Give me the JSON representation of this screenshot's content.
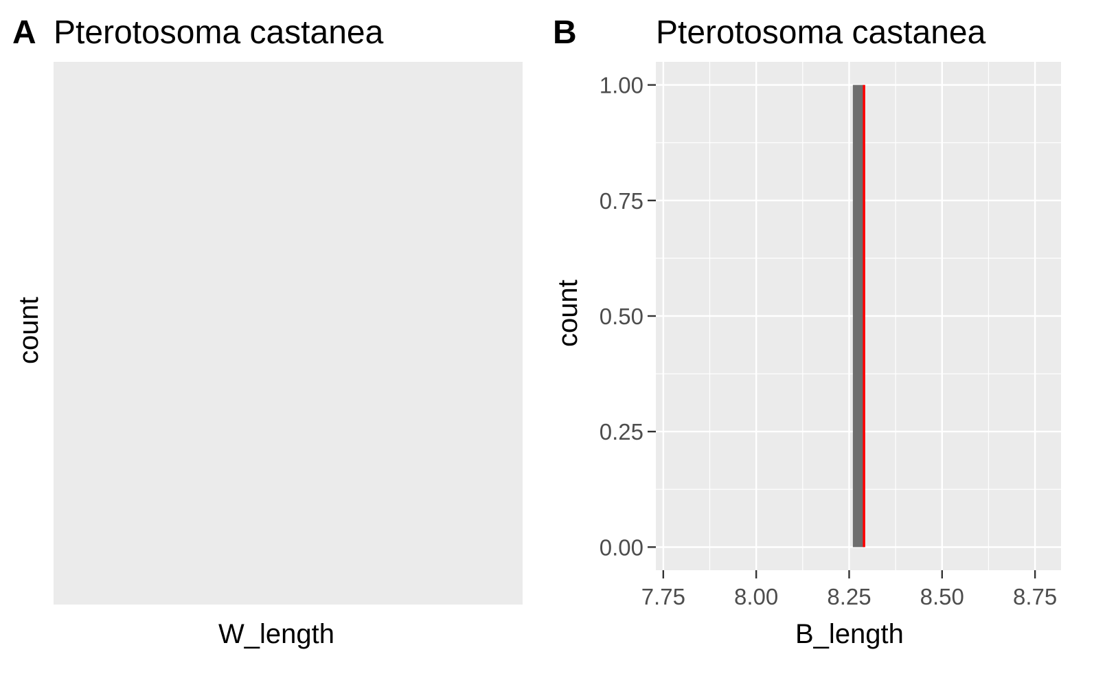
{
  "chart_data": [
    {
      "panel": "A",
      "type": "bar",
      "title": "Pterotosoma castanea",
      "xlabel": "W_length",
      "ylabel": "count",
      "values": [],
      "grid": false
    },
    {
      "panel": "B",
      "type": "bar",
      "title": "Pterotosoma castanea",
      "xlabel": "B_length",
      "ylabel": "count",
      "xlim": [
        7.73,
        8.82
      ],
      "ylim": [
        -0.05,
        1.05
      ],
      "xticks": [
        7.75,
        8.0,
        8.25,
        8.5,
        8.75
      ],
      "xtick_labels": [
        "7.75",
        "8.00",
        "8.25",
        "8.50",
        "8.75"
      ],
      "yticks": [
        0.0,
        0.25,
        0.5,
        0.75,
        1.0
      ],
      "ytick_labels": [
        "0.00",
        "0.25",
        "0.50",
        "0.75",
        "1.00"
      ],
      "bars": [
        {
          "xmin": 8.26,
          "xmax": 8.29,
          "count": 1
        }
      ],
      "vline": {
        "x": 8.29,
        "color": "#ff0000"
      },
      "bar_color": "#6e6e6e",
      "grid": true
    }
  ]
}
